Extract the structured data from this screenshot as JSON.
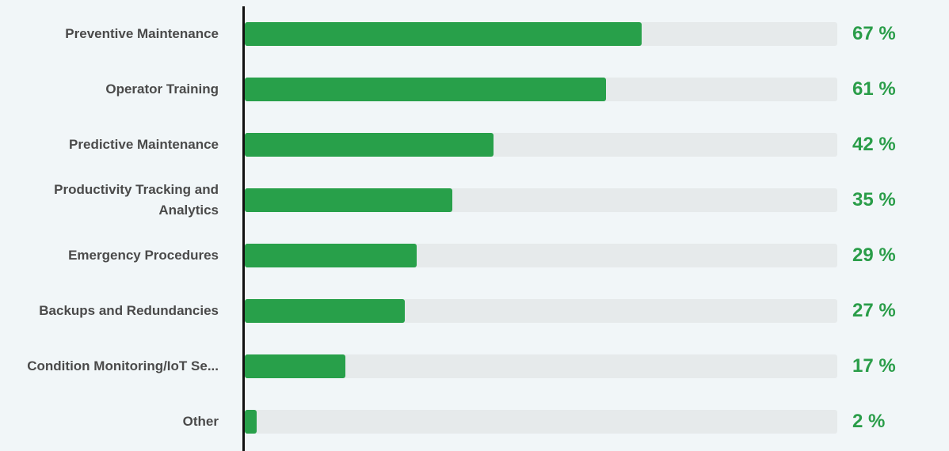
{
  "chart_data": {
    "type": "bar",
    "orientation": "horizontal",
    "title": "",
    "xlabel": "",
    "ylabel": "",
    "xlim": [
      0,
      100
    ],
    "unit": "%",
    "categories": [
      "Preventive Maintenance",
      "Operator Training",
      "Predictive Maintenance",
      "Productivity Tracking and Analytics",
      "Emergency Procedures",
      "Backups and Redundancies",
      "Condition Monitoring/IoT Se...",
      "Other"
    ],
    "values": [
      67,
      61,
      42,
      35,
      29,
      27,
      17,
      2
    ],
    "value_labels": [
      "67 %",
      "61 %",
      "42 %",
      "35 %",
      "29 %",
      "27 %",
      "17 %",
      "2 %"
    ],
    "colors": {
      "bar": "#28a04a",
      "track": "#e6eaeb",
      "value_text": "#2a9d49",
      "label_text": "#4a4a4a",
      "background": "#f1f6f8"
    },
    "grid": false,
    "legend": "none"
  }
}
